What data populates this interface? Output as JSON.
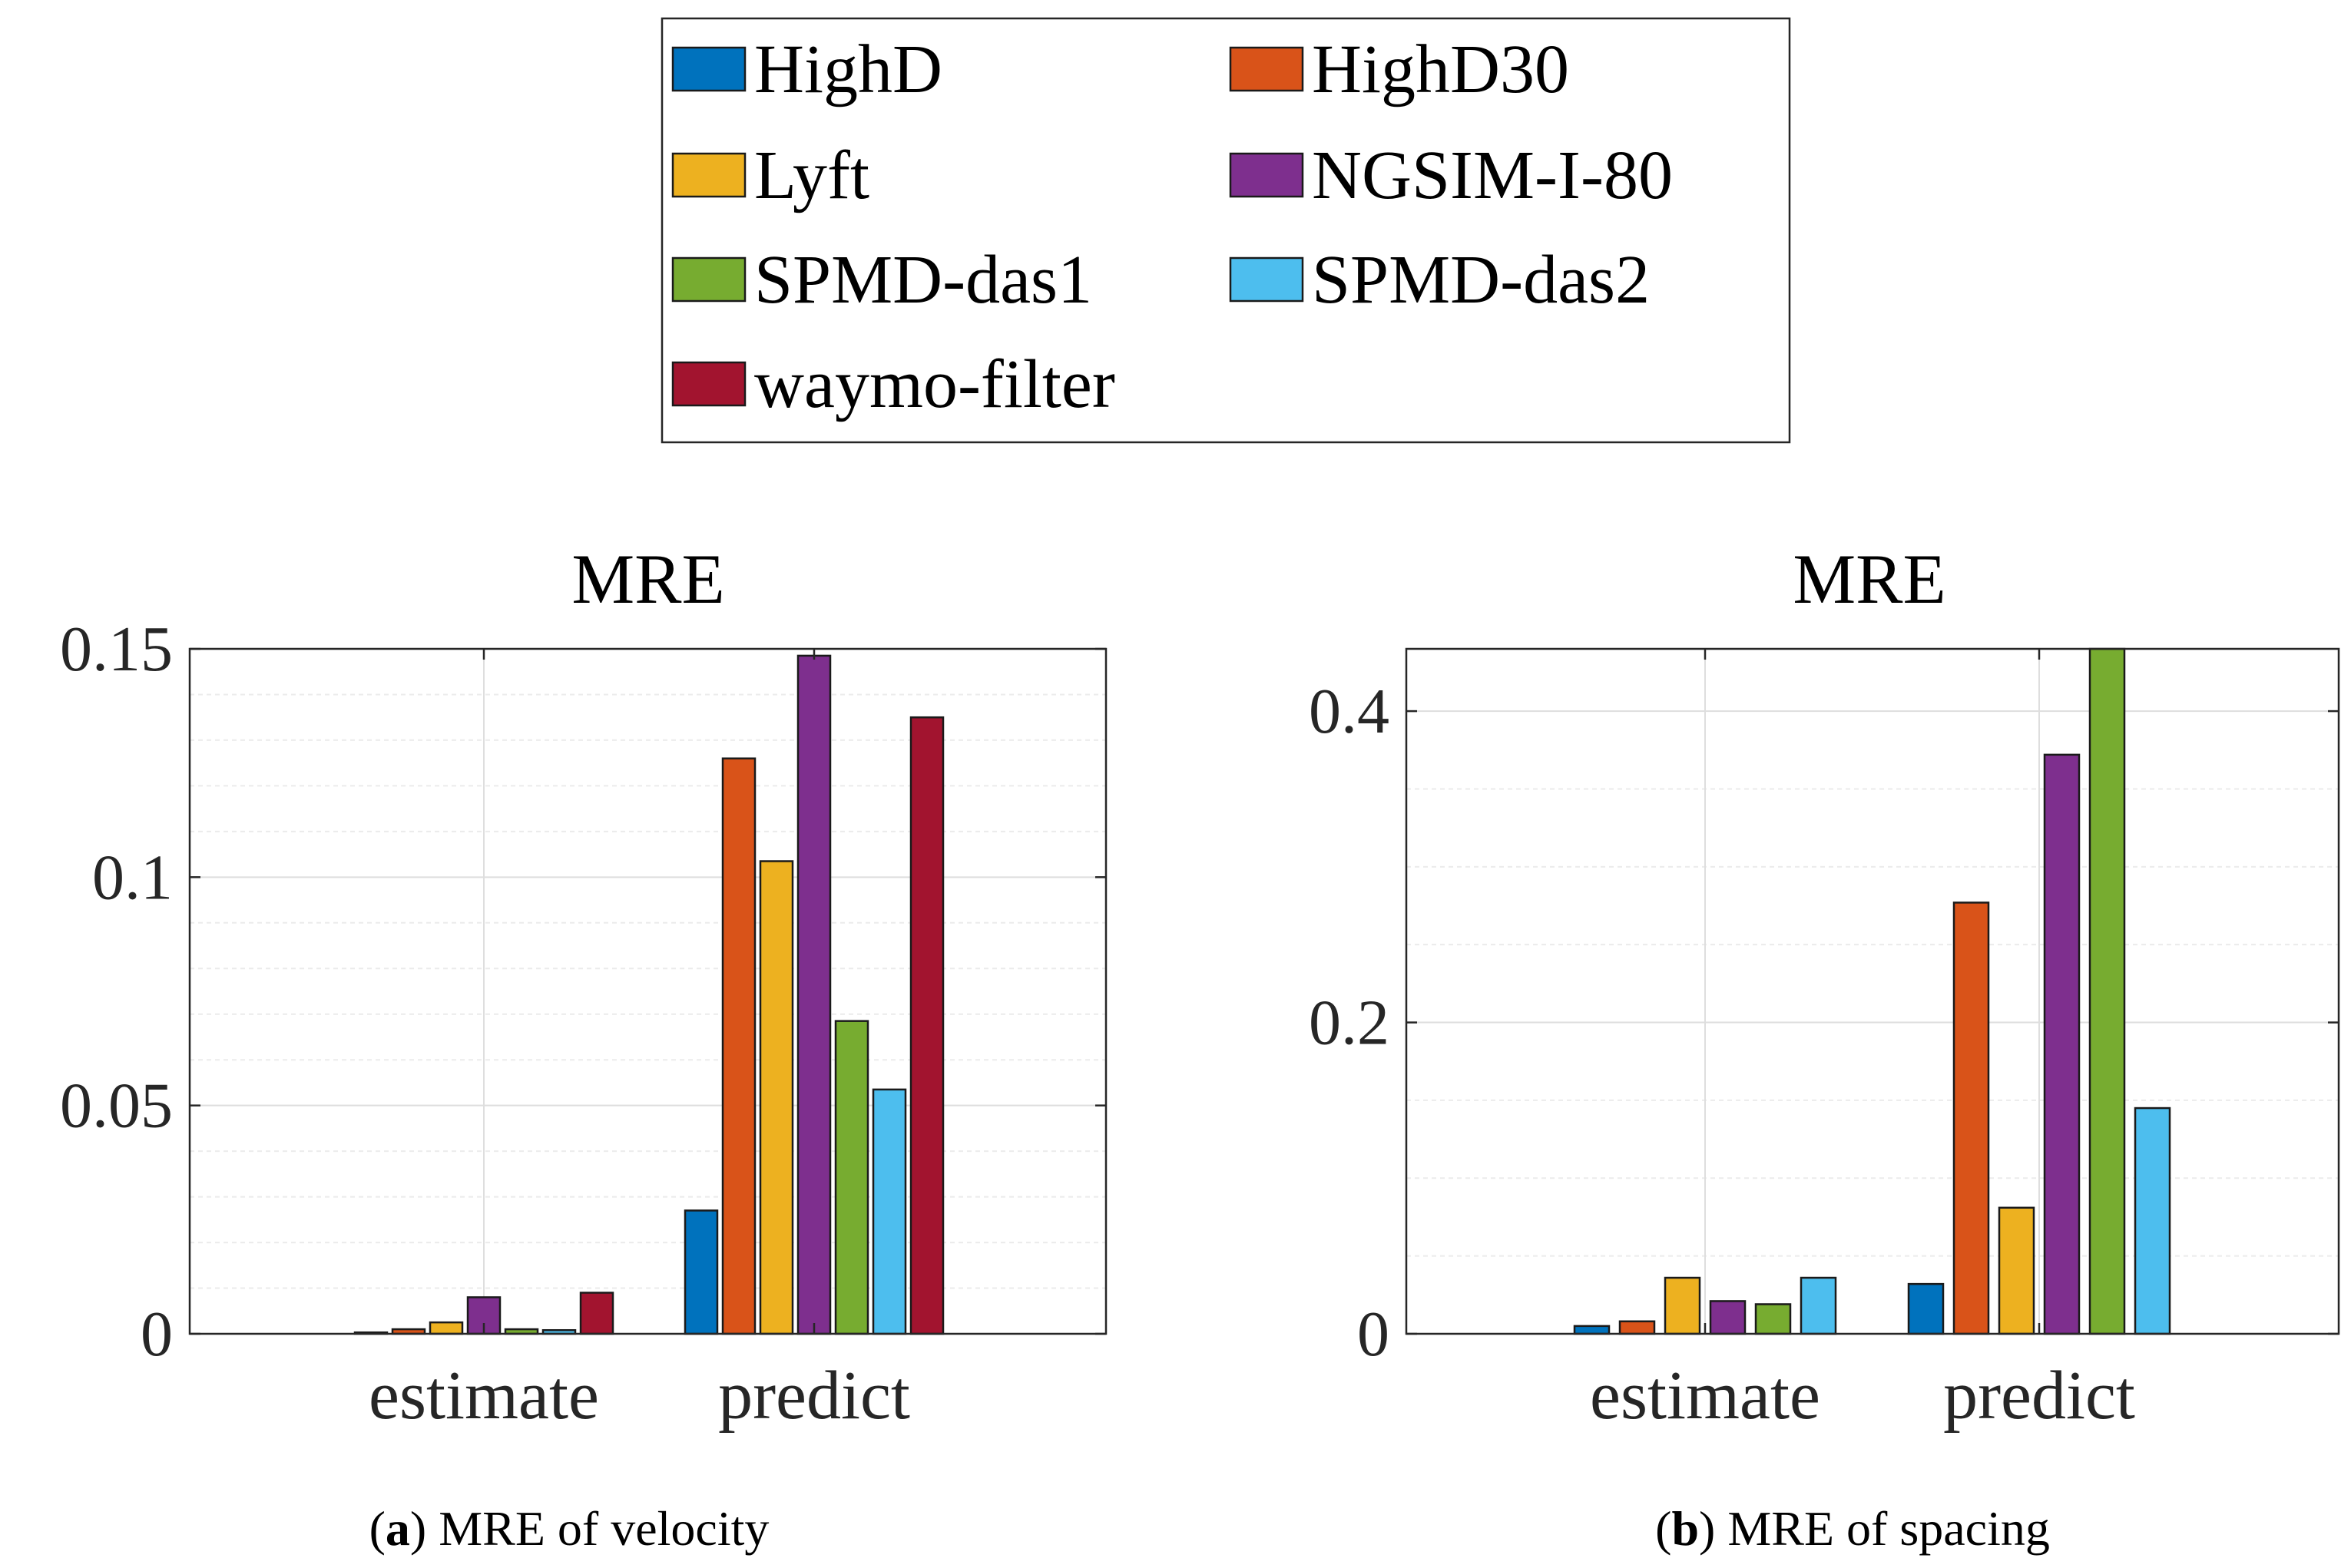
{
  "legend": {
    "entries": [
      {
        "name": "HighD",
        "color": "#0072BD"
      },
      {
        "name": "HighD30",
        "color": "#D95319"
      },
      {
        "name": "Lyft",
        "color": "#EDB120"
      },
      {
        "name": "NGSIM-I-80",
        "color": "#7E2F8E"
      },
      {
        "name": "SPMD-das1",
        "color": "#77AC30"
      },
      {
        "name": "SPMD-das2",
        "color": "#4DBEEE"
      },
      {
        "name": "waymo-filter",
        "color": "#A2142F"
      }
    ]
  },
  "captions": {
    "a": {
      "letter": "a",
      "text": " MRE of velocity"
    },
    "b": {
      "letter": "b",
      "text": " MRE of spacing"
    }
  },
  "chart_data": [
    {
      "type": "bar",
      "title": "MRE",
      "categories": [
        "estimate",
        "predict"
      ],
      "ylim": [
        0,
        0.15
      ],
      "yticks": [
        0,
        0.05,
        0.1,
        0.15
      ],
      "ytick_labels": [
        "0",
        "0.05",
        "0.1",
        "0.15"
      ],
      "grid": "on",
      "series": [
        {
          "name": "HighD",
          "values": [
            0.0003,
            0.027
          ]
        },
        {
          "name": "HighD30",
          "values": [
            0.001,
            0.126
          ]
        },
        {
          "name": "Lyft",
          "values": [
            0.0025,
            0.1035
          ]
        },
        {
          "name": "NGSIM-I-80",
          "values": [
            0.008,
            0.1485
          ]
        },
        {
          "name": "SPMD-das1",
          "values": [
            0.001,
            0.0685
          ]
        },
        {
          "name": "SPMD-das2",
          "values": [
            0.0008,
            0.0535
          ]
        },
        {
          "name": "waymo-filter",
          "values": [
            0.009,
            0.135
          ]
        }
      ]
    },
    {
      "type": "bar",
      "title": "MRE",
      "categories": [
        "estimate",
        "predict"
      ],
      "ylim": [
        0,
        0.44
      ],
      "yticks": [
        0,
        0.2,
        0.4
      ],
      "ytick_labels": [
        "0",
        "0.2",
        "0.4"
      ],
      "grid": "on",
      "series": [
        {
          "name": "HighD",
          "values": [
            0.005,
            0.032
          ]
        },
        {
          "name": "HighD30",
          "values": [
            0.008,
            0.277
          ]
        },
        {
          "name": "Lyft",
          "values": [
            0.036,
            0.081
          ]
        },
        {
          "name": "NGSIM-I-80",
          "values": [
            0.021,
            0.372
          ]
        },
        {
          "name": "SPMD-das1",
          "values": [
            0.019,
            0.44
          ]
        },
        {
          "name": "SPMD-das2",
          "values": [
            0.036,
            0.145
          ]
        }
      ]
    }
  ]
}
